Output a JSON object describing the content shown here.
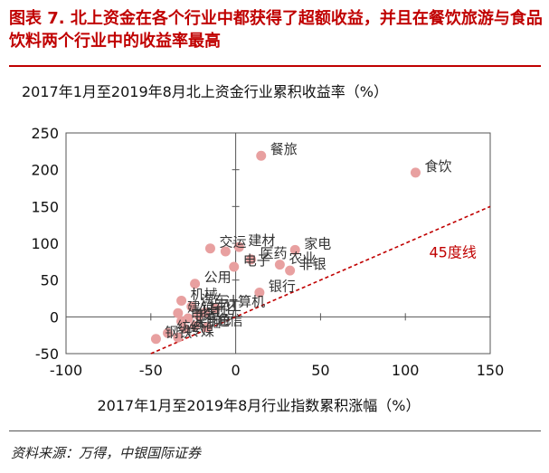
{
  "figure": {
    "title": "图表 7. 北上资金在各个行业中都获得了超额收益，并且在餐饮旅游与食品饮料两个行业中的收益率最高",
    "source": "资料来源：万得，中银国际证券"
  },
  "chart_data": {
    "type": "scatter",
    "title": "2017年1月至2019年8月北上资金行业累积收益率（%）",
    "xlabel": "2017年1月至2019年8月行业指数累积涨幅（%）",
    "ylabel": "",
    "xlim": [
      -100,
      150
    ],
    "ylim": [
      -50,
      250
    ],
    "xticks": [
      "-100",
      "-50",
      "0",
      "50",
      "100",
      "150"
    ],
    "yticks": [
      "-50",
      "0",
      "50",
      "100",
      "150",
      "200",
      "250"
    ],
    "grid": false,
    "point_color": "#e8a0a0",
    "line_color": "#c00000",
    "reference_line": {
      "label": "45度线",
      "x": [
        -50,
        150
      ],
      "y": [
        -50,
        150
      ]
    },
    "points": [
      {
        "label": "餐旅",
        "x": 15,
        "y": 219
      },
      {
        "label": "食饮",
        "x": 106,
        "y": 196
      },
      {
        "label": "建材",
        "x": 2,
        "y": 95
      },
      {
        "label": "交运",
        "x": -15,
        "y": 93
      },
      {
        "label": "",
        "x": -6,
        "y": 89
      },
      {
        "label": "家电",
        "x": 35,
        "y": 91
      },
      {
        "label": "医药",
        "x": 9,
        "y": 78
      },
      {
        "label": "农业",
        "x": 26,
        "y": 71
      },
      {
        "label": "电子",
        "x": -1,
        "y": 68
      },
      {
        "label": "非银",
        "x": 32,
        "y": 63
      },
      {
        "label": "公用",
        "x": -24,
        "y": 45
      },
      {
        "label": "银行",
        "x": 14,
        "y": 33
      },
      {
        "label": "机械",
        "x": -32,
        "y": 22
      },
      {
        "label": "汽车",
        "x": -26,
        "y": 14
      },
      {
        "label": "计算机",
        "x": -12,
        "y": 12
      },
      {
        "label": "军工",
        "x": -18,
        "y": 6
      },
      {
        "label": "建筑",
        "x": -34,
        "y": 5
      },
      {
        "label": "石化",
        "x": -22,
        "y": 2
      },
      {
        "label": "化工",
        "x": -28,
        "y": -2
      },
      {
        "label": "电气",
        "x": -32,
        "y": -6
      },
      {
        "label": "有色",
        "x": -24,
        "y": -12
      },
      {
        "label": "采掘",
        "x": -30,
        "y": -16
      },
      {
        "label": "通信",
        "x": -17,
        "y": -14
      },
      {
        "label": "纺织",
        "x": -40,
        "y": -22
      },
      {
        "label": "传媒",
        "x": -34,
        "y": -28
      },
      {
        "label": "钢铁",
        "x": -47,
        "y": -30
      }
    ]
  }
}
